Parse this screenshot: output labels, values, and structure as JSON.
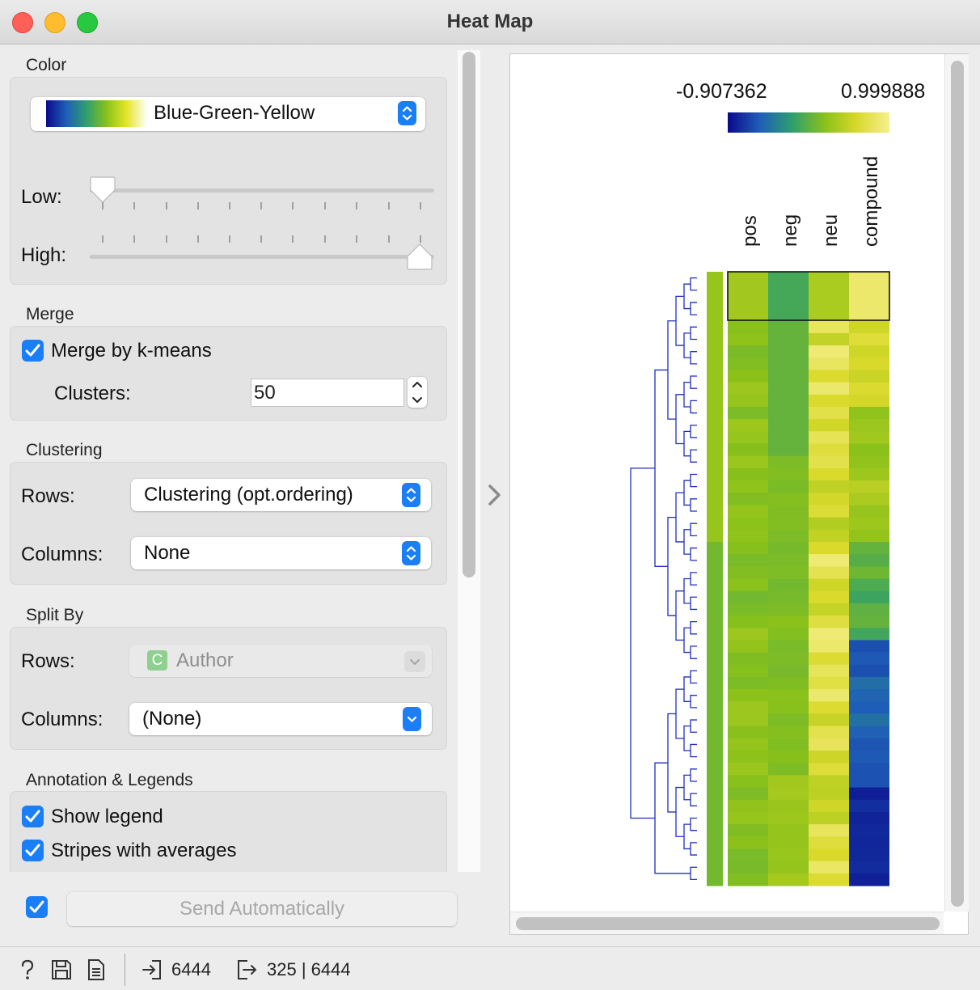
{
  "window": {
    "title": "Heat Map"
  },
  "sidebar": {
    "color": {
      "section_title": "Color",
      "palette_label": "Blue-Green-Yellow",
      "low_label": "Low:",
      "high_label": "High:",
      "low_value": 0.0,
      "high_value": 1.0
    },
    "merge": {
      "section_title": "Merge",
      "merge_kmeans_label": "Merge by k-means",
      "merge_kmeans_checked": true,
      "clusters_label": "Clusters:",
      "clusters_value": "50"
    },
    "clustering": {
      "section_title": "Clustering",
      "rows_label": "Rows:",
      "rows_value": "Clustering (opt.ordering)",
      "columns_label": "Columns:",
      "columns_value": "None"
    },
    "split_by": {
      "section_title": "Split By",
      "rows_label": "Rows:",
      "rows_badge": "C",
      "rows_value": "Author",
      "columns_label": "Columns:",
      "columns_value": "(None)"
    },
    "annotation": {
      "section_title": "Annotation & Legends",
      "show_legend_label": "Show legend",
      "show_legend_checked": true,
      "stripes_label": "Stripes with averages",
      "stripes_checked": true
    },
    "send": {
      "auto_checked": true,
      "button_label": "Send Automatically"
    }
  },
  "heatmap": {
    "legend_min": "-0.907362",
    "legend_max": "0.999888",
    "columns": [
      "pos",
      "neg",
      "neu",
      "compound"
    ],
    "colors": {
      "palette": [
        "#0a0a8c",
        "#1f5fb8",
        "#2e9f6e",
        "#8ac11a",
        "#d9d92a",
        "#f6f08e"
      ],
      "dendrogram": "#1f2fbf",
      "selection": "#111111"
    }
  },
  "statusbar": {
    "icons": [
      "help-icon",
      "save-icon",
      "report-icon"
    ],
    "input_count": "6444",
    "output_count": "325 | 6444"
  }
}
